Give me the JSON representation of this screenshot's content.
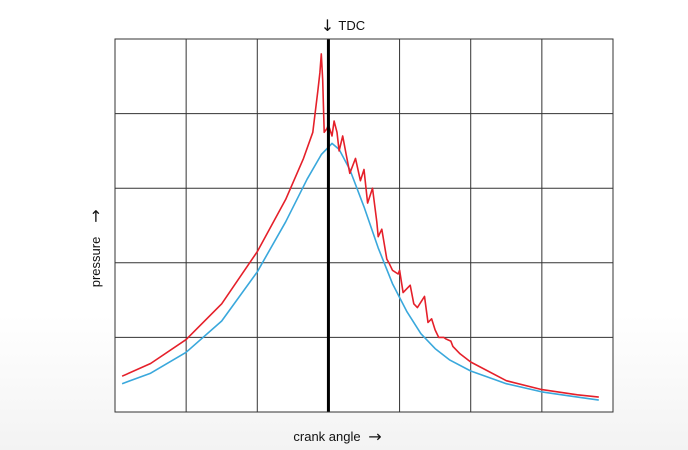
{
  "chart_data": {
    "type": "line",
    "title": "",
    "xlabel": "crank angle",
    "ylabel": "pressure",
    "xlabel_arrow": "→",
    "ylabel_arrow": "→",
    "marker": {
      "label": "TDC",
      "arrow": "↓",
      "x": 0
    },
    "xlim": [
      -3,
      4
    ],
    "ylim": [
      0,
      5
    ],
    "grid": true,
    "legend": "none",
    "series": [
      {
        "color": "#e5202a",
        "x": [
          -2.9,
          -2.5,
          -2.0,
          -1.5,
          -1.0,
          -0.6,
          -0.35,
          -0.22,
          -0.15,
          -0.12,
          -0.1,
          -0.08,
          -0.06,
          -0.02,
          0.0,
          0.05,
          0.08,
          0.12,
          0.15,
          0.2,
          0.25,
          0.3,
          0.38,
          0.45,
          0.5,
          0.55,
          0.62,
          0.68,
          0.7,
          0.75,
          0.82,
          0.85,
          0.9,
          0.98,
          1.0,
          1.05,
          1.15,
          1.2,
          1.25,
          1.35,
          1.4,
          1.45,
          1.5,
          1.55,
          1.62,
          1.65,
          1.72,
          1.75,
          1.85,
          2.0,
          2.5,
          3.0,
          3.5,
          3.8
        ],
        "y": [
          0.48,
          0.65,
          0.97,
          1.45,
          2.15,
          2.85,
          3.4,
          3.75,
          4.3,
          4.55,
          4.8,
          4.45,
          3.75,
          3.8,
          3.85,
          3.7,
          3.9,
          3.75,
          3.5,
          3.7,
          3.45,
          3.2,
          3.4,
          3.1,
          3.25,
          2.8,
          3.0,
          2.55,
          2.35,
          2.45,
          2.05,
          2.0,
          1.9,
          1.85,
          1.9,
          1.6,
          1.7,
          1.45,
          1.4,
          1.55,
          1.2,
          1.25,
          1.1,
          1.0,
          1.0,
          0.98,
          0.95,
          0.88,
          0.78,
          0.67,
          0.42,
          0.3,
          0.23,
          0.2
        ]
      },
      {
        "color": "#3aa8dc",
        "x": [
          -2.9,
          -2.5,
          -2.0,
          -1.5,
          -1.0,
          -0.6,
          -0.3,
          -0.1,
          0.0,
          0.05,
          0.15,
          0.3,
          0.5,
          0.7,
          0.9,
          1.1,
          1.3,
          1.5,
          1.7,
          2.0,
          2.5,
          3.0,
          3.5,
          3.8
        ],
        "y": [
          0.38,
          0.52,
          0.8,
          1.22,
          1.88,
          2.55,
          3.12,
          3.45,
          3.55,
          3.6,
          3.52,
          3.25,
          2.75,
          2.2,
          1.72,
          1.35,
          1.05,
          0.85,
          0.7,
          0.55,
          0.38,
          0.27,
          0.2,
          0.16
        ]
      }
    ]
  }
}
